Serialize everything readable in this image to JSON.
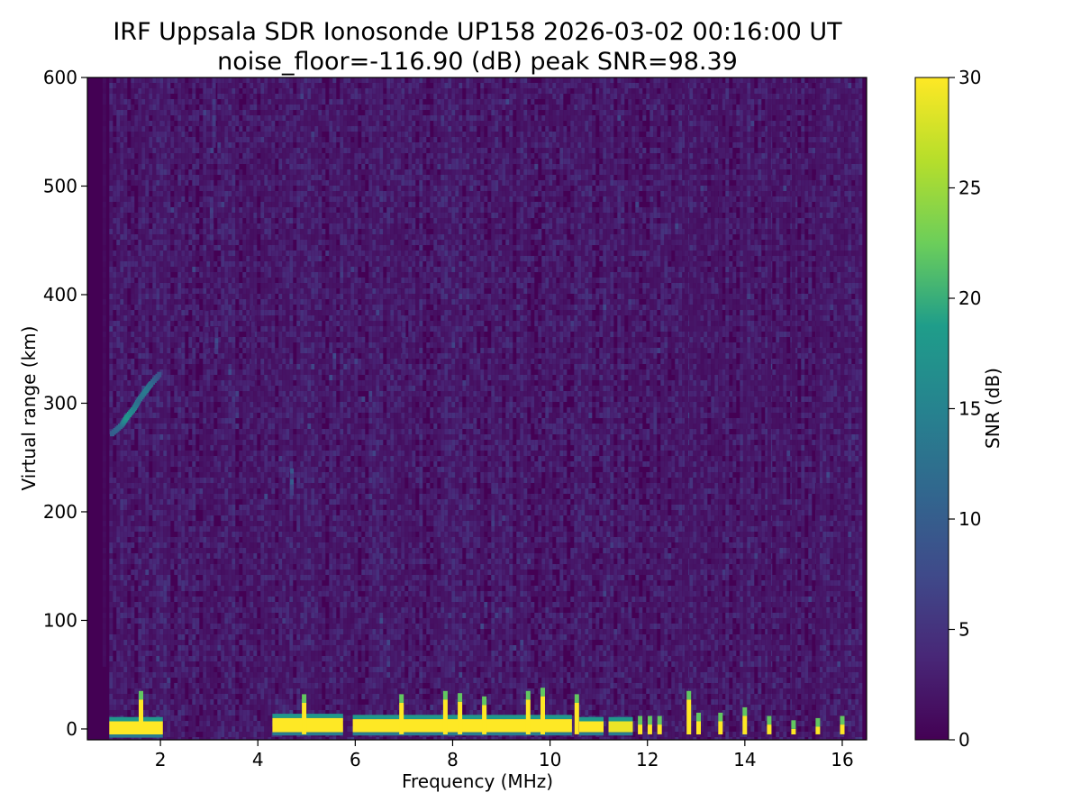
{
  "chart_data": {
    "type": "heatmap",
    "title": "IRF Uppsala SDR Ionosonde UP158 2026-03-02 00:16:00  UT",
    "subtitle": "noise_floor=-116.90 (dB) peak SNR=98.39",
    "xlabel": "Frequency (MHz)",
    "ylabel": "Virtual range (km)",
    "xlim": [
      0.5,
      16.5
    ],
    "ylim": [
      -10,
      600
    ],
    "xticks": [
      2,
      4,
      6,
      8,
      10,
      12,
      14,
      16
    ],
    "yticks": [
      0,
      100,
      200,
      300,
      400,
      500,
      600
    ],
    "colorbar": {
      "label": "SNR (dB)",
      "range": [
        0,
        30
      ],
      "ticks": [
        0,
        5,
        10,
        15,
        20,
        25,
        30
      ],
      "colormap": [
        "#440154",
        "#482777",
        "#3f4a8a",
        "#31678e",
        "#26838f",
        "#1f9d8a",
        "#6cce5a",
        "#b6de2b",
        "#fee825"
      ]
    },
    "noise_region": {
      "xmin": 0.95,
      "xmax": 16.4,
      "ymin": -10,
      "ymax": 600,
      "typical_snr": 1.5
    },
    "ground_echo_bands": [
      {
        "xmin": 0.95,
        "xmax": 2.05,
        "ymin": -5,
        "ymax": 7,
        "snr": 30
      },
      {
        "xmin": 4.3,
        "xmax": 5.75,
        "ymin": -3,
        "ymax": 10,
        "snr": 30
      },
      {
        "xmin": 5.95,
        "xmax": 10.45,
        "ymin": -3,
        "ymax": 9,
        "snr": 30
      },
      {
        "xmin": 10.6,
        "xmax": 11.1,
        "ymin": -3,
        "ymax": 7,
        "snr": 30
      },
      {
        "xmin": 11.2,
        "xmax": 11.7,
        "ymin": -3,
        "ymax": 7,
        "snr": 29
      }
    ],
    "ground_echo_spikes": [
      {
        "x": 1.6,
        "ymax": 35
      },
      {
        "x": 4.95,
        "ymax": 32
      },
      {
        "x": 6.95,
        "ymax": 32
      },
      {
        "x": 7.85,
        "ymax": 35
      },
      {
        "x": 8.15,
        "ymax": 33
      },
      {
        "x": 8.65,
        "ymax": 30
      },
      {
        "x": 9.55,
        "ymax": 35
      },
      {
        "x": 9.85,
        "ymax": 38
      },
      {
        "x": 10.55,
        "ymax": 32
      },
      {
        "x": 11.85,
        "ymax": 12
      },
      {
        "x": 12.05,
        "ymax": 12
      },
      {
        "x": 12.25,
        "ymax": 12
      },
      {
        "x": 12.85,
        "ymax": 35
      },
      {
        "x": 13.05,
        "ymax": 15
      },
      {
        "x": 13.5,
        "ymax": 15
      },
      {
        "x": 14.0,
        "ymax": 20
      },
      {
        "x": 14.5,
        "ymax": 12
      },
      {
        "x": 15.0,
        "ymax": 8
      },
      {
        "x": 15.5,
        "ymax": 10
      },
      {
        "x": 16.0,
        "ymax": 12
      }
    ],
    "f_trace": [
      {
        "x": 1.0,
        "y": 272,
        "snr": 10
      },
      {
        "x": 1.2,
        "y": 280,
        "snr": 12
      },
      {
        "x": 1.3,
        "y": 287,
        "snr": 18
      },
      {
        "x": 1.45,
        "y": 295,
        "snr": 15
      },
      {
        "x": 1.55,
        "y": 303,
        "snr": 12
      },
      {
        "x": 1.7,
        "y": 312,
        "snr": 14
      },
      {
        "x": 1.8,
        "y": 318,
        "snr": 12
      },
      {
        "x": 2.0,
        "y": 328,
        "snr": 8
      }
    ],
    "interference_columns": [
      {
        "x": 3.1,
        "ymin": 540,
        "ymax": 600,
        "snr": 5
      },
      {
        "x": 3.05,
        "ymin": 455,
        "ymax": 490,
        "snr": 5
      },
      {
        "x": 2.95,
        "ymin": 350,
        "ymax": 385,
        "snr": 4
      },
      {
        "x": 3.15,
        "ymin": 350,
        "ymax": 370,
        "snr": 6
      },
      {
        "x": 3.9,
        "ymin": 320,
        "ymax": 390,
        "snr": 3
      },
      {
        "x": 6.9,
        "ymin": 520,
        "ymax": 600,
        "snr": 3
      },
      {
        "x": 7.0,
        "ymin": 330,
        "ymax": 380,
        "snr": 4
      },
      {
        "x": 6.9,
        "ymin": 395,
        "ymax": 405,
        "snr": 3
      },
      {
        "x": 4.7,
        "ymin": 220,
        "ymax": 240,
        "snr": 8
      },
      {
        "x": 0.85,
        "ymin": 60,
        "ymax": 600,
        "snr": 1
      },
      {
        "x": 12.8,
        "ymin": 0,
        "ymax": 600,
        "snr": 2
      },
      {
        "x": 13.05,
        "ymin": 0,
        "ymax": 600,
        "snr": 2
      },
      {
        "x": 13.5,
        "ymin": 0,
        "ymax": 600,
        "snr": 2
      },
      {
        "x": 14.0,
        "ymin": 0,
        "ymax": 600,
        "snr": 2
      },
      {
        "x": 14.5,
        "ymin": 0,
        "ymax": 600,
        "snr": 2
      },
      {
        "x": 15.0,
        "ymin": 0,
        "ymax": 600,
        "snr": 2
      },
      {
        "x": 15.5,
        "ymin": 0,
        "ymax": 600,
        "snr": 2
      },
      {
        "x": 16.0,
        "ymin": 0,
        "ymax": 600,
        "snr": 2
      },
      {
        "x": 2.05,
        "ymin": 530,
        "ymax": 560,
        "snr": 3
      }
    ]
  }
}
